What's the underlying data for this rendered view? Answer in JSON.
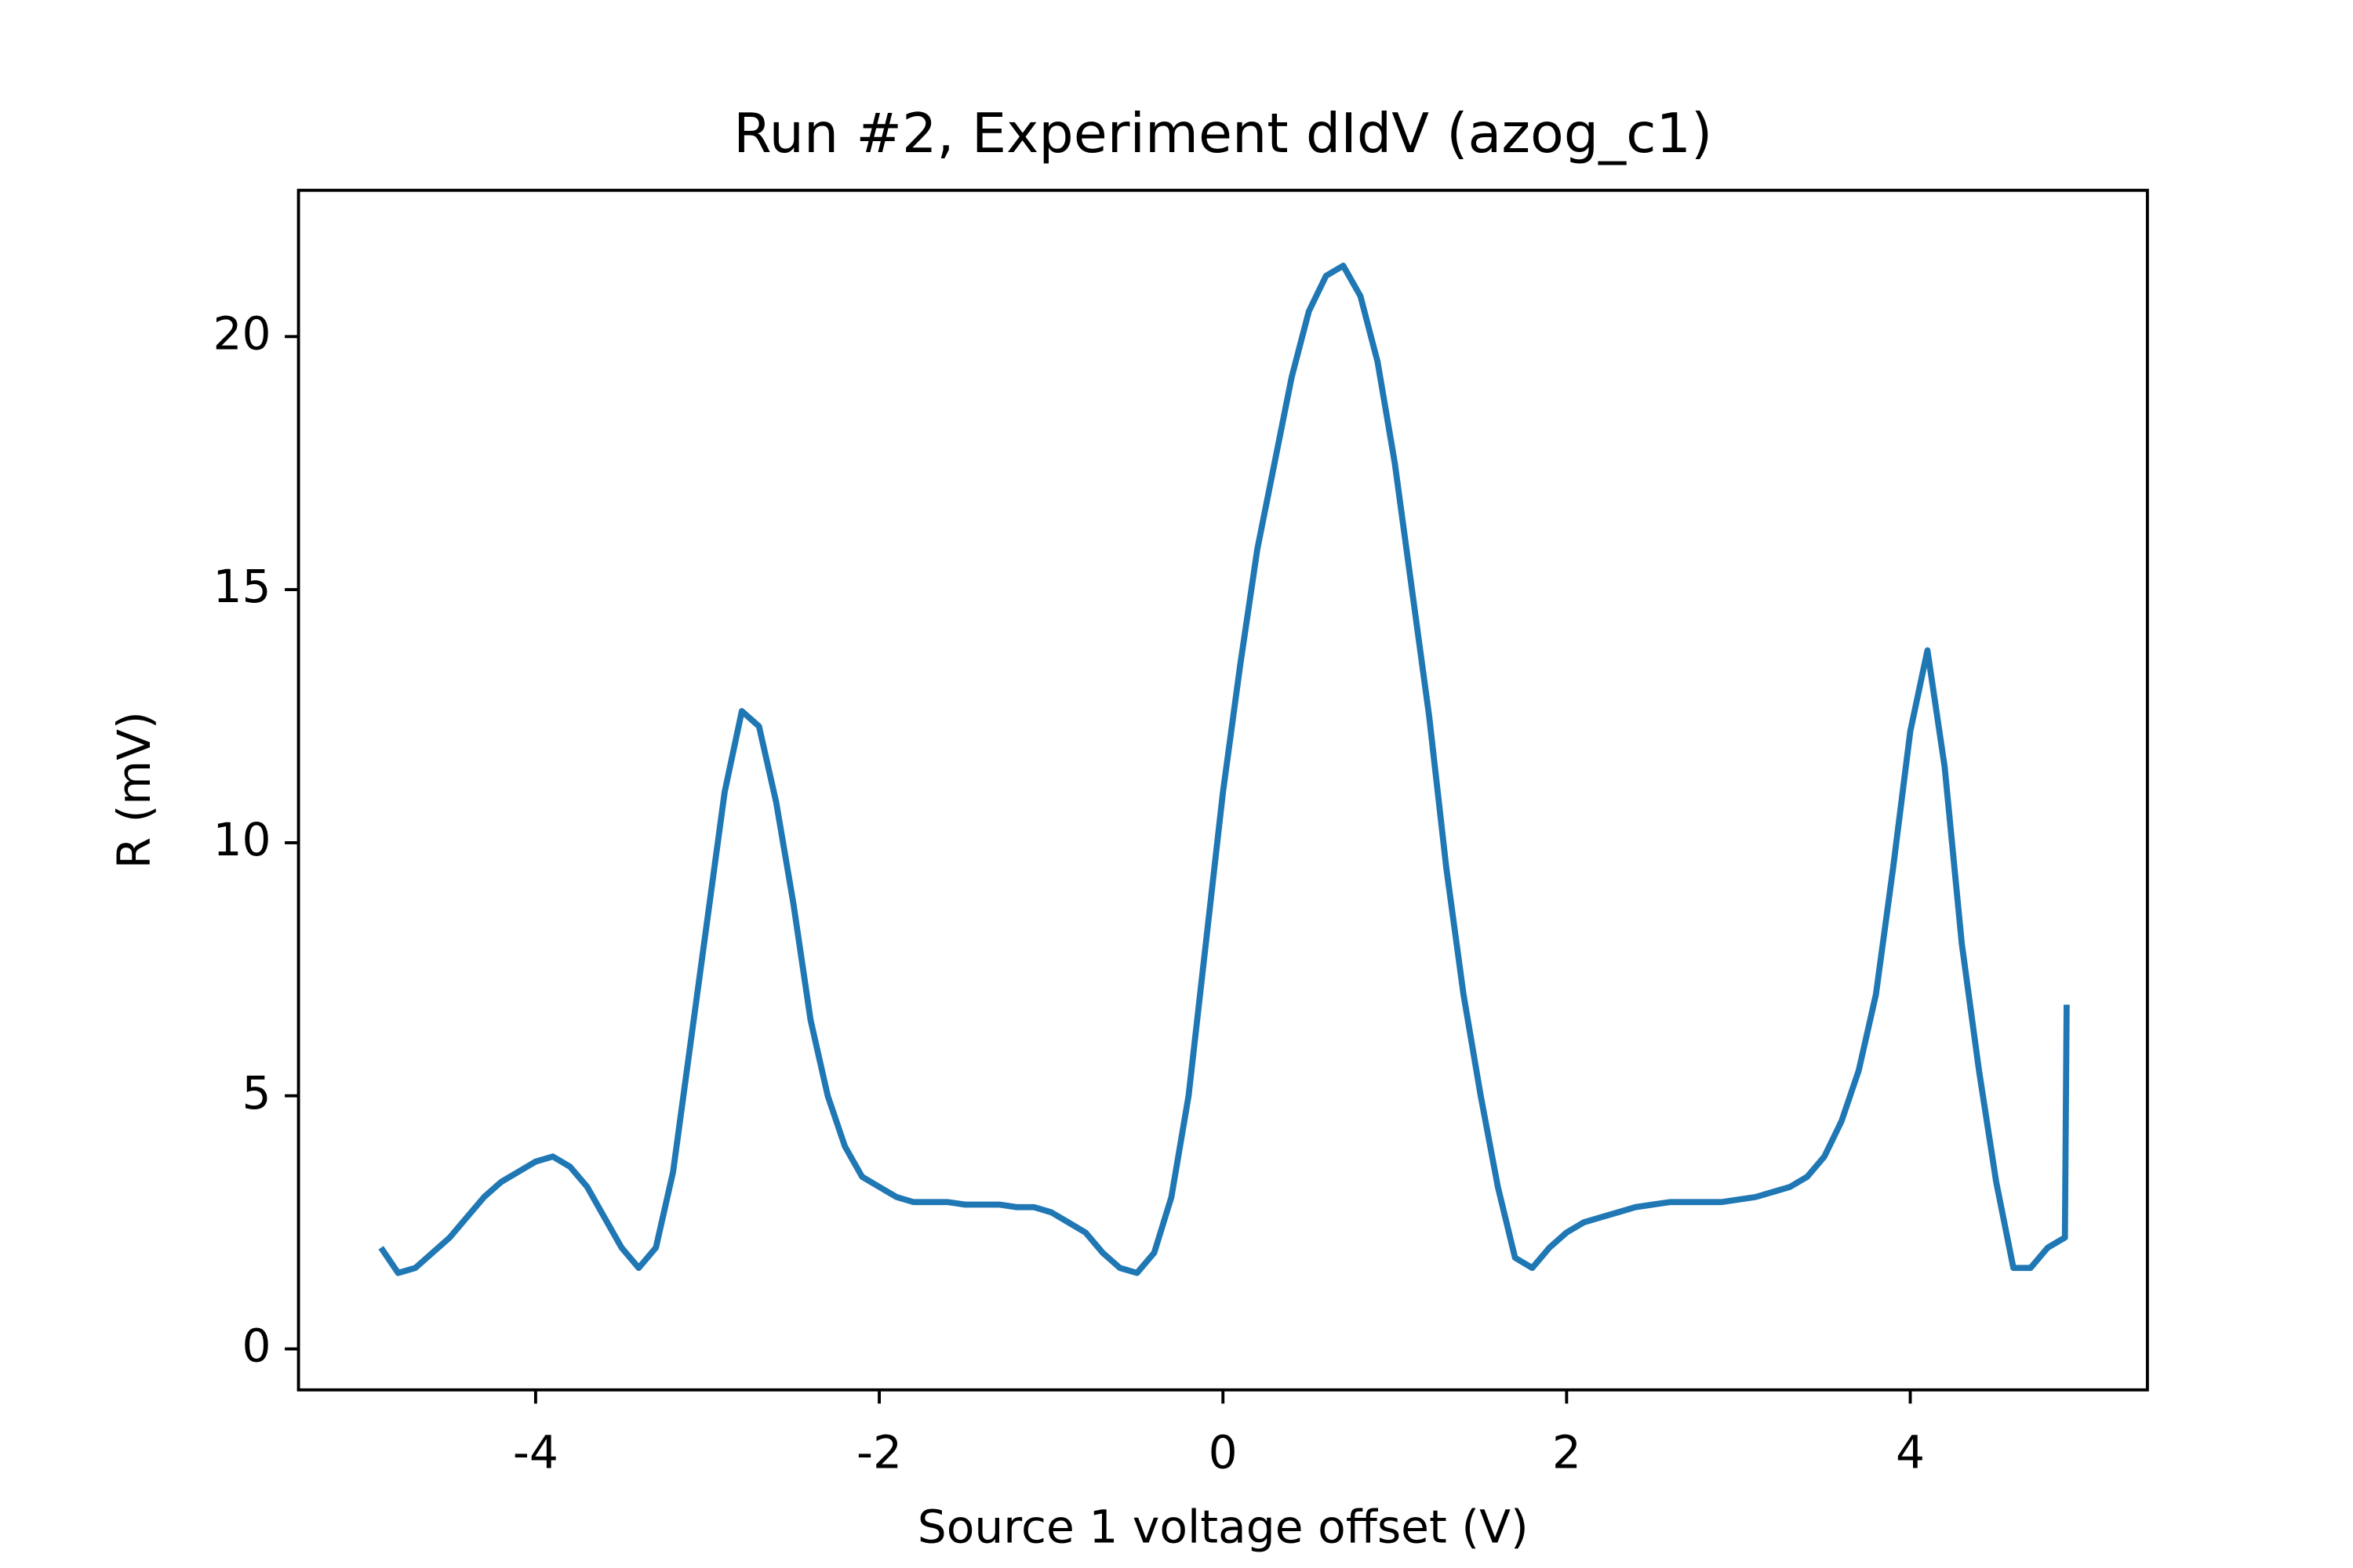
{
  "chart_data": {
    "type": "line",
    "title": "Run #2, Experiment dIdV (azog_c1)",
    "x_label": "Source 1 voltage offset (V)",
    "y_label": "R (mV)",
    "x": [
      -4.9,
      -4.8,
      -4.7,
      -4.6,
      -4.5,
      -4.4,
      -4.3,
      -4.2,
      -4.1,
      -4.0,
      -3.9,
      -3.8,
      -3.7,
      -3.6,
      -3.5,
      -3.4,
      -3.3,
      -3.2,
      -3.1,
      -3.0,
      -2.9,
      -2.8,
      -2.7,
      -2.6,
      -2.5,
      -2.4,
      -2.3,
      -2.2,
      -2.1,
      -2.0,
      -1.9,
      -1.8,
      -1.7,
      -1.6,
      -1.5,
      -1.4,
      -1.3,
      -1.2,
      -1.1,
      -1.0,
      -0.9,
      -0.8,
      -0.7,
      -0.6,
      -0.5,
      -0.4,
      -0.3,
      -0.2,
      -0.1,
      0.0,
      0.1,
      0.2,
      0.3,
      0.4,
      0.5,
      0.6,
      0.7,
      0.8,
      0.9,
      1.0,
      1.1,
      1.2,
      1.3,
      1.4,
      1.5,
      1.6,
      1.7,
      1.8,
      1.9,
      2.0,
      2.1,
      2.2,
      2.3,
      2.4,
      2.5,
      2.6,
      2.7,
      2.8,
      2.9,
      3.0,
      3.1,
      3.2,
      3.3,
      3.4,
      3.5,
      3.6,
      3.7,
      3.8,
      3.9,
      4.0,
      4.1,
      4.2,
      4.3,
      4.4,
      4.5,
      4.6,
      4.7,
      4.8,
      4.9,
      4.91
    ],
    "series": [
      {
        "name": "R",
        "color": "#1f77b4",
        "values": [
          2.0,
          1.5,
          1.6,
          1.9,
          2.2,
          2.6,
          3.0,
          3.3,
          3.5,
          3.7,
          3.8,
          3.6,
          3.2,
          2.6,
          2.0,
          1.6,
          2.0,
          3.5,
          6.0,
          8.5,
          11.0,
          12.6,
          12.3,
          10.8,
          8.8,
          6.5,
          5.0,
          4.0,
          3.4,
          3.2,
          3.0,
          2.9,
          2.9,
          2.9,
          2.85,
          2.85,
          2.85,
          2.8,
          2.8,
          2.7,
          2.5,
          2.3,
          1.9,
          1.6,
          1.5,
          1.9,
          3.0,
          5.0,
          8.0,
          11.0,
          13.5,
          15.8,
          17.5,
          19.2,
          20.5,
          21.2,
          21.4,
          20.8,
          19.5,
          17.5,
          15.0,
          12.5,
          9.5,
          7.0,
          5.0,
          3.2,
          1.8,
          1.6,
          2.0,
          2.3,
          2.5,
          2.6,
          2.7,
          2.8,
          2.85,
          2.9,
          2.9,
          2.9,
          2.9,
          2.95,
          3.0,
          3.1,
          3.2,
          3.4,
          3.8,
          4.5,
          5.5,
          7.0,
          9.5,
          12.2,
          13.8,
          11.5,
          8.0,
          5.5,
          3.3,
          1.6,
          1.6,
          2.0,
          2.2,
          6.8
        ]
      }
    ],
    "xlim": [
      -5.38,
      5.38
    ],
    "ylim": [
      -0.81,
      22.89
    ],
    "xticks": [
      -4,
      -2,
      0,
      2,
      4
    ],
    "yticks": [
      0,
      5,
      10,
      15,
      20
    ],
    "grid": false
  }
}
